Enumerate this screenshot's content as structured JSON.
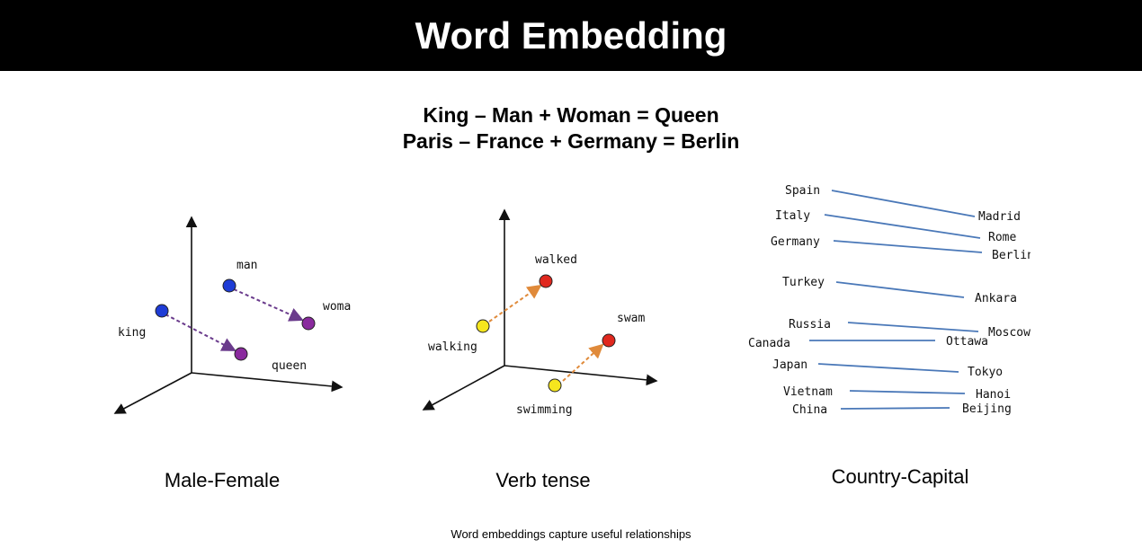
{
  "title": "Word Embedding",
  "equations": [
    "King – Man + Woman = Queen",
    "Paris – France + Germany = Berlin"
  ],
  "panels": {
    "male_female": {
      "caption": "Male-Female",
      "labels": {
        "man": "man",
        "woman": "woman",
        "king": "king",
        "queen": "queen"
      },
      "colors": {
        "male": "#1e3cd6",
        "female": "#8a2a9e",
        "arrow": "#6a3b8c"
      }
    },
    "verb_tense": {
      "caption": "Verb tense",
      "labels": {
        "walked": "walked",
        "walking": "walking",
        "swam": "swam",
        "swimming": "swimming"
      },
      "colors": {
        "present": "#f5e61e",
        "past": "#e0281e",
        "arrow": "#e08a3a"
      }
    },
    "country_capital": {
      "caption": "Country-Capital",
      "line_color": "#4a78b8",
      "pairs": [
        {
          "country": "Spain",
          "capital": "Madrid"
        },
        {
          "country": "Italy",
          "capital": "Rome"
        },
        {
          "country": "Germany",
          "capital": "Berlin"
        },
        {
          "country": "Turkey",
          "capital": "Ankara"
        },
        {
          "country": "Russia",
          "capital": "Moscow"
        },
        {
          "country": "Canada",
          "capital": "Ottawa"
        },
        {
          "country": "Japan",
          "capital": "Tokyo"
        },
        {
          "country": "Vietnam",
          "capital": "Hanoi"
        },
        {
          "country": "China",
          "capital": "Beijing"
        }
      ]
    }
  },
  "footnote": "Word embeddings capture useful relationships"
}
